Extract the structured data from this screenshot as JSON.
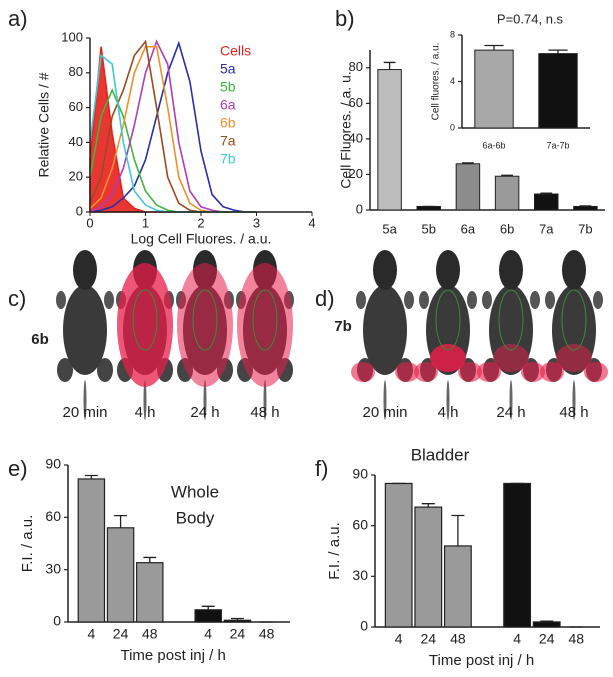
{
  "chart_data": [
    {
      "type": "line",
      "panel": "a)",
      "x_label": "Log Cell Fluores. / a.u.",
      "y_label": "Relative Cells / #",
      "xlim": [
        0,
        4
      ],
      "xticks": [
        0,
        1,
        2,
        3,
        4
      ],
      "ylim": [
        0,
        100
      ],
      "yticks": [
        0,
        20,
        40,
        60,
        80,
        100
      ],
      "x": [
        0,
        0.2,
        0.4,
        0.6,
        0.8,
        1.0,
        1.2,
        1.4,
        1.6,
        1.8,
        2.0,
        2.2,
        2.4,
        2.6,
        2.8,
        3.0
      ],
      "series": [
        {
          "name": "Cells",
          "color": "#e8201c",
          "fill": true,
          "values": [
            30,
            95,
            45,
            8,
            2,
            0,
            0,
            0,
            0,
            0,
            0,
            0,
            0,
            0,
            0,
            0
          ]
        },
        {
          "name": "5a",
          "color": "#2a2ea8",
          "values": [
            0,
            1,
            3,
            8,
            15,
            30,
            55,
            80,
            97,
            75,
            35,
            10,
            3,
            1,
            0,
            0
          ]
        },
        {
          "name": "5b",
          "color": "#3cb83a",
          "values": [
            20,
            55,
            70,
            55,
            30,
            12,
            4,
            1,
            0,
            0,
            0,
            0,
            0,
            0,
            0,
            0
          ]
        },
        {
          "name": "6a",
          "color": "#b03cb8",
          "values": [
            0,
            3,
            10,
            25,
            50,
            80,
            98,
            85,
            40,
            12,
            3,
            1,
            0,
            0,
            0,
            0
          ]
        },
        {
          "name": "6b",
          "color": "#f0902a",
          "values": [
            2,
            8,
            25,
            50,
            80,
            95,
            95,
            60,
            20,
            5,
            1,
            0,
            0,
            0,
            0,
            0
          ]
        },
        {
          "name": "7a",
          "color": "#9a4a1c",
          "values": [
            5,
            20,
            55,
            70,
            90,
            98,
            60,
            20,
            5,
            1,
            0,
            0,
            0,
            0,
            0,
            0
          ]
        },
        {
          "name": "7b",
          "color": "#3ec8d8",
          "values": [
            40,
            90,
            85,
            40,
            12,
            4,
            1,
            0,
            0,
            0,
            0,
            0,
            0,
            0,
            0,
            0
          ]
        }
      ]
    },
    {
      "type": "bar",
      "panel": "b)",
      "y_label": "Cell Fluores. / a. u.",
      "categories": [
        "5a",
        "5b",
        "6a",
        "6b",
        "7a",
        "7b"
      ],
      "values": [
        79,
        2,
        26,
        19,
        9,
        2
      ],
      "errors": [
        4,
        0,
        0.5,
        0.5,
        0.5,
        0.3
      ],
      "colors": [
        "#bdbdbd",
        "#111111",
        "#8c8c8c",
        "#9a9a9a",
        "#111111",
        "#111111"
      ],
      "ylim": [
        0,
        90
      ],
      "yticks": [
        0,
        20,
        40,
        60,
        80
      ]
    },
    {
      "type": "bar",
      "annotation": "P=0.74, n.s",
      "y_label": "Cell fluores. / a.u.",
      "categories": [
        "6a-6b",
        "7a-7b"
      ],
      "values": [
        6.7,
        6.4
      ],
      "errors": [
        0.4,
        0.3
      ],
      "colors": [
        "#a8a8a8",
        "#111111"
      ],
      "ylim": [
        0,
        8
      ],
      "yticks": [
        0,
        4,
        8
      ]
    },
    {
      "type": "grouped-bar",
      "panel": "e)",
      "y_label": "F.I. / a.u.",
      "x_label": "Time post inj / h",
      "annotation": [
        "Whole",
        "Body"
      ],
      "groups": [
        {
          "color": "#9a9a9a",
          "categories": [
            "4",
            "24",
            "48"
          ],
          "values": [
            82,
            54,
            34
          ],
          "errors": [
            2,
            7,
            3
          ]
        },
        {
          "color": "#111111",
          "categories": [
            "4",
            "24",
            "48"
          ],
          "values": [
            7,
            1,
            0
          ],
          "errors": [
            2,
            1,
            0
          ]
        }
      ],
      "ylim": [
        0,
        90
      ],
      "yticks": [
        0,
        30,
        60,
        90
      ]
    },
    {
      "type": "grouped-bar",
      "panel": "f)",
      "title": "Bladder",
      "y_label": "F.I. / a.u.",
      "x_label": "Time post inj / h",
      "groups": [
        {
          "color": "#9a9a9a",
          "categories": [
            "4",
            "24",
            "48"
          ],
          "values": [
            85,
            71,
            48
          ],
          "errors": [
            0,
            2,
            18
          ]
        },
        {
          "color": "#111111",
          "categories": [
            "4",
            "24",
            "48"
          ],
          "values": [
            85,
            3,
            0
          ],
          "errors": [
            0,
            0.5,
            0
          ]
        }
      ],
      "ylim": [
        0,
        90
      ],
      "yticks": [
        0,
        30,
        60,
        90
      ]
    }
  ],
  "images": [
    {
      "label": "c)",
      "compound": "6b",
      "times": [
        "20 min",
        "4 h",
        "24 h",
        "48 h"
      ]
    },
    {
      "label": "d)",
      "compound": "7b",
      "times": [
        "20 min",
        "4 h",
        "24 h",
        "48 h"
      ]
    }
  ]
}
